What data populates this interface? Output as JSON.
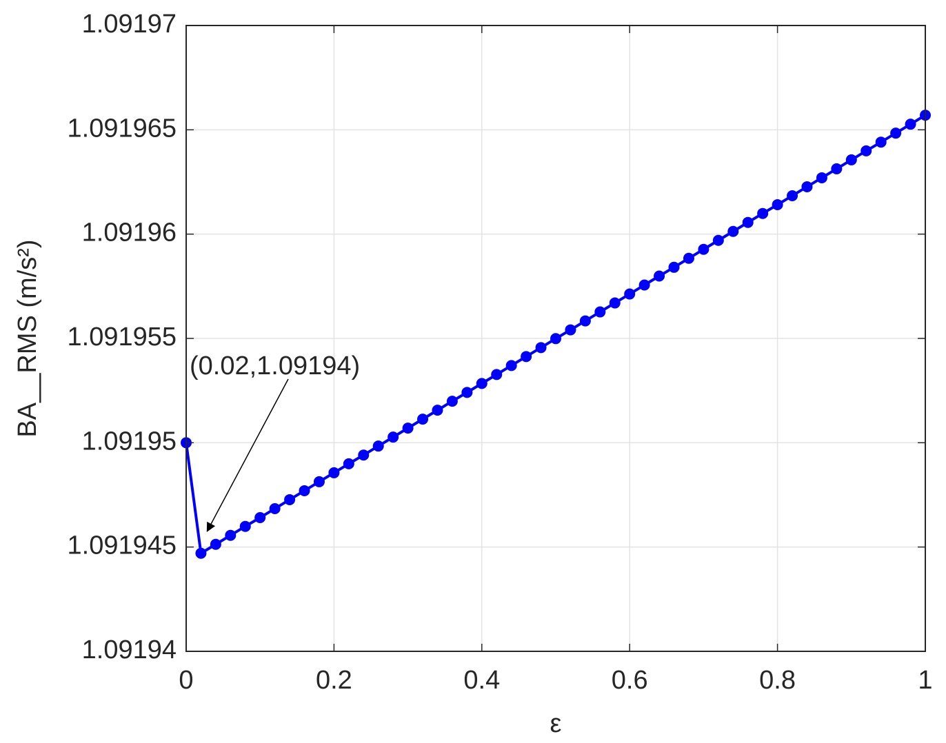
{
  "chart_data": {
    "type": "line",
    "xlabel": "ε",
    "ylabel": "BA__RMS (m/s²)",
    "x": [
      0,
      0.02,
      0.04,
      0.06,
      0.08,
      0.1,
      0.12,
      0.14,
      0.16,
      0.18,
      0.2,
      0.22,
      0.24,
      0.26,
      0.28,
      0.3,
      0.32,
      0.34,
      0.36,
      0.38,
      0.4,
      0.42,
      0.44,
      0.46,
      0.48,
      0.5,
      0.52,
      0.54,
      0.56,
      0.58,
      0.6,
      0.62,
      0.64,
      0.66,
      0.68,
      0.7,
      0.72,
      0.74,
      0.76,
      0.78,
      0.8,
      0.82,
      0.84,
      0.86,
      0.88,
      0.9,
      0.92,
      0.94,
      0.96,
      0.98,
      1
    ],
    "series": [
      {
        "color": "#0000ff",
        "values": [
          1.09195,
          1.0919447,
          1.09194513,
          1.09194556,
          1.09194599,
          1.09194641,
          1.09194684,
          1.09194727,
          1.0919477,
          1.09194813,
          1.09194856,
          1.09194899,
          1.09194941,
          1.09194984,
          1.09195027,
          1.0919507,
          1.09195113,
          1.09195156,
          1.09195199,
          1.09195241,
          1.09195284,
          1.09195327,
          1.0919537,
          1.09195413,
          1.09195456,
          1.09195499,
          1.09195541,
          1.09195584,
          1.09195627,
          1.0919567,
          1.09195713,
          1.09195756,
          1.09195799,
          1.09195841,
          1.09195884,
          1.09195927,
          1.0919597,
          1.09196013,
          1.09196056,
          1.09196099,
          1.09196141,
          1.09196184,
          1.09196227,
          1.0919627,
          1.09196313,
          1.09196356,
          1.09196399,
          1.09196441,
          1.09196484,
          1.09196527,
          1.0919657
        ]
      }
    ],
    "annotations": [
      {
        "text": "(0.02,1.09194)"
      }
    ],
    "xlim": [
      0,
      1
    ],
    "xticks": [
      0,
      0.2,
      0.4,
      0.6,
      0.8,
      1
    ],
    "ylim": [
      1.09194,
      1.09197
    ],
    "yticks": [
      1.09194,
      1.091945,
      1.09195,
      1.091955,
      1.09196,
      1.091965,
      1.09197
    ],
    "grid": true
  }
}
